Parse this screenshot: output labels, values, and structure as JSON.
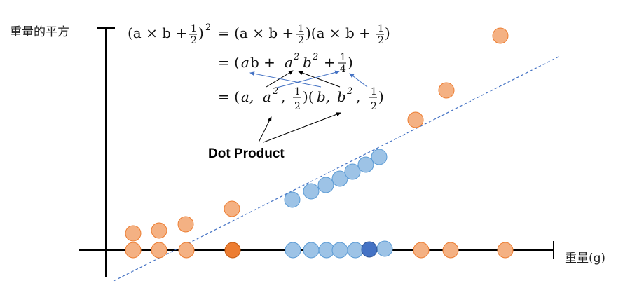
{
  "axis": {
    "y_label": "重量的平方",
    "x_label": "重量(g)"
  },
  "annotation": "Dot Product",
  "equation": {
    "line1_lhs_open": "(a × b +",
    "line1_lhs_close": ")",
    "line1_lhs_sup": "2",
    "line1_eq": "= (a × b +",
    "line1_mid": ")(a × b +",
    "line1_end": ")",
    "half_num": "1",
    "half_den": "2",
    "quarter_num": "1",
    "quarter_den": "4",
    "line2_open": "= (",
    "line2_a": "a",
    "line2_b": "b +",
    "line2_a2": "a",
    "line2_a2_sup": "2",
    "line2_b2": "b",
    "line2_b2_sup": "2",
    "line2_plus": "+",
    "line2_close": ")",
    "line3_open": "= (",
    "line3_a": "a,",
    "line3_a2": "a",
    "line3_a2_sup": "2",
    "line3_comma1": ",",
    "line3_mid": ")(",
    "line3_b": "b,",
    "line3_b2": "b",
    "line3_b2_sup": "2",
    "line3_comma2": ",",
    "line3_close": ")"
  },
  "colors": {
    "orange_fill": "#f4b183",
    "orange_stroke": "#ed7d31",
    "orange_dark": "#ed7d31",
    "blue_fill": "#9dc3e6",
    "blue_stroke": "#5b9bd5",
    "blue_dark": "#4472c4",
    "dash_line": "#4472c4",
    "arrow_blue": "#4472c4",
    "arrow_black": "#000000"
  }
}
